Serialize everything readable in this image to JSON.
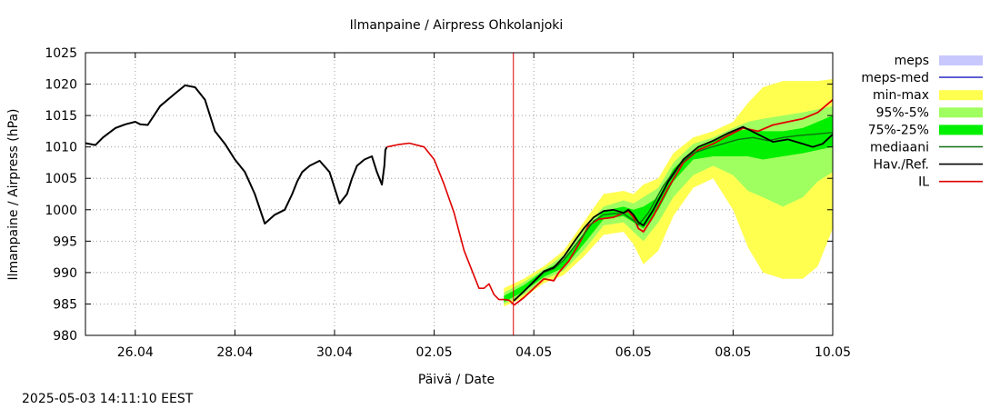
{
  "timestamp": "2025-05-03 14:11:10 EEST",
  "colors": {
    "meps": "#c8c8ff",
    "meps_med": "#3c3cc8",
    "min_max": "#ffff50",
    "p95_5": "#a0ff60",
    "p75_25": "#00f000",
    "median": "#107010",
    "observed": "#000000",
    "il": "#e00000",
    "now_line": "#e00000"
  },
  "chart_data": {
    "type": "line",
    "title": "Ilmanpaine / Airpress Ohkolanjoki",
    "xlabel": "Päivä / Date",
    "ylabel": "Ilmanpaine / Airpress (hPa)",
    "x_unit": "days from 2025-04-25 00:00",
    "xlim": [
      0,
      15
    ],
    "ylim": [
      980,
      1025
    ],
    "grid": true,
    "legend_position": "right",
    "x_ticks": [
      {
        "x": 1,
        "label": "26.04"
      },
      {
        "x": 3,
        "label": "28.04"
      },
      {
        "x": 5,
        "label": "30.04"
      },
      {
        "x": 7,
        "label": "02.05"
      },
      {
        "x": 9,
        "label": "04.05"
      },
      {
        "x": 11,
        "label": "06.05"
      },
      {
        "x": 13,
        "label": "08.05"
      },
      {
        "x": 15,
        "label": "10.05"
      }
    ],
    "y_ticks": [
      {
        "y": 980,
        "label": "980"
      },
      {
        "y": 985,
        "label": "985"
      },
      {
        "y": 990,
        "label": "990"
      },
      {
        "y": 995,
        "label": "995"
      },
      {
        "y": 1000,
        "label": "1000"
      },
      {
        "y": 1005,
        "label": "1005"
      },
      {
        "y": 1010,
        "label": "1010"
      },
      {
        "y": 1015,
        "label": "1015"
      },
      {
        "y": 1020,
        "label": "1020"
      },
      {
        "y": 1025,
        "label": "1025"
      }
    ],
    "now_x": 8.59,
    "legend": [
      {
        "key": "meps",
        "label": "meps",
        "kind": "box"
      },
      {
        "key": "meps_med",
        "label": "meps-med",
        "kind": "line"
      },
      {
        "key": "min_max",
        "label": "min-max",
        "kind": "box"
      },
      {
        "key": "p95_5",
        "label": "95%-5%",
        "kind": "box"
      },
      {
        "key": "p75_25",
        "label": "75%-25%",
        "kind": "box"
      },
      {
        "key": "median",
        "label": "mediaani",
        "kind": "line"
      },
      {
        "key": "observed",
        "label": "Hav./Ref.",
        "kind": "line"
      },
      {
        "key": "il",
        "label": "IL",
        "kind": "line"
      }
    ],
    "bands": {
      "min_max": {
        "x": [
          8.4,
          8.8,
          9.2,
          9.6,
          10.0,
          10.4,
          10.8,
          11.0,
          11.2,
          11.5,
          11.8,
          12.2,
          12.6,
          13.0,
          13.3,
          13.6,
          14.0,
          14.4,
          14.7,
          15.0
        ],
        "lower": [
          984.6,
          986.0,
          988.3,
          989.6,
          992.5,
          996.0,
          996.5,
          994.5,
          991.3,
          993.5,
          999.0,
          1003.5,
          1005.0,
          1000.0,
          994.0,
          990.0,
          989.0,
          989.0,
          991.0,
          997.0
        ],
        "upper": [
          987.5,
          989.0,
          991.0,
          993.5,
          998.0,
          1002.5,
          1003.0,
          1002.5,
          1004.0,
          1005.0,
          1009.0,
          1011.5,
          1012.5,
          1014.0,
          1017.0,
          1019.5,
          1020.5,
          1020.5,
          1020.5,
          1020.8
        ]
      },
      "p95_5": {
        "x": [
          8.4,
          8.8,
          9.2,
          9.6,
          10.0,
          10.4,
          10.8,
          11.0,
          11.2,
          11.5,
          11.8,
          12.2,
          12.6,
          13.0,
          13.3,
          13.6,
          14.0,
          14.4,
          14.7,
          15.0
        ],
        "lower": [
          985.0,
          986.5,
          988.8,
          990.3,
          993.5,
          997.5,
          998.0,
          996.5,
          995.0,
          998.0,
          1002.0,
          1005.5,
          1007.0,
          1005.5,
          1003.0,
          1002.0,
          1000.5,
          1002.0,
          1004.5,
          1006.0
        ],
        "upper": [
          986.8,
          988.5,
          990.5,
          992.8,
          997.0,
          1000.5,
          1001.5,
          1001.0,
          1002.0,
          1003.5,
          1007.5,
          1010.5,
          1011.5,
          1013.0,
          1014.0,
          1014.5,
          1015.0,
          1015.5,
          1016.0,
          1016.5
        ]
      },
      "p75_25": {
        "x": [
          8.4,
          8.8,
          9.2,
          9.6,
          10.0,
          10.4,
          10.8,
          11.0,
          11.2,
          11.5,
          11.8,
          12.2,
          12.6,
          13.0,
          13.3,
          13.6,
          14.0,
          14.4,
          14.7,
          15.0
        ],
        "lower": [
          985.3,
          987.0,
          989.3,
          990.8,
          994.5,
          998.5,
          999.0,
          998.0,
          997.0,
          1000.0,
          1004.5,
          1008.0,
          1008.5,
          1008.5,
          1008.5,
          1008.0,
          1008.5,
          1009.0,
          1009.5,
          1010.0
        ],
        "upper": [
          986.3,
          988.0,
          990.3,
          992.0,
          996.3,
          999.8,
          1000.5,
          1000.0,
          1000.5,
          1002.0,
          1006.5,
          1009.5,
          1011.0,
          1012.5,
          1012.8,
          1012.5,
          1012.5,
          1013.0,
          1014.0,
          1015.0
        ]
      }
    },
    "series": [
      {
        "key": "observed",
        "name": "Hav./Ref.",
        "x": [
          0.0,
          0.2,
          0.35,
          0.6,
          0.8,
          1.0,
          1.1,
          1.25,
          1.5,
          1.8,
          2.0,
          2.2,
          2.4,
          2.6,
          2.8,
          3.0,
          3.2,
          3.4,
          3.6,
          3.8,
          4.0,
          4.15,
          4.25,
          4.35,
          4.5,
          4.7,
          4.9,
          5.1,
          5.25,
          5.35,
          5.45,
          5.6,
          5.75,
          5.85,
          5.95,
          6.0,
          6.02,
          6.05
        ],
        "y": [
          1010.6,
          1010.3,
          1011.5,
          1013.0,
          1013.6,
          1014.0,
          1013.6,
          1013.5,
          1016.5,
          1018.5,
          1019.8,
          1019.5,
          1017.5,
          1012.5,
          1010.5,
          1008.0,
          1006.0,
          1002.5,
          997.8,
          999.2,
          1000.0,
          1002.5,
          1004.5,
          1006.0,
          1007.0,
          1007.8,
          1006.0,
          1001.0,
          1002.5,
          1005.0,
          1007.0,
          1008.0,
          1008.5,
          1006.0,
          1004.0,
          1007.0,
          1009.5,
          1010.0
        ]
      },
      {
        "key": "il_obs",
        "name": "IL",
        "x": [
          6.05,
          6.3,
          6.5,
          6.7,
          6.8,
          7.0,
          7.2,
          7.4,
          7.6,
          7.8,
          7.9,
          8.0,
          8.1,
          8.2,
          8.3,
          8.4,
          8.5,
          8.55,
          8.6
        ],
        "y": [
          1010.0,
          1010.4,
          1010.6,
          1010.2,
          1010.0,
          1008.0,
          1004.0,
          999.5,
          993.5,
          989.5,
          987.5,
          987.5,
          988.2,
          986.5,
          985.7,
          985.7,
          985.6,
          985.3,
          984.8
        ]
      },
      {
        "key": "il",
        "name": "IL",
        "x": [
          8.6,
          8.8,
          9.0,
          9.2,
          9.4,
          9.5,
          9.7,
          9.9,
          10.1,
          10.3,
          10.6,
          10.9,
          11.0,
          11.1,
          11.2,
          11.4,
          11.7,
          12.0,
          12.3,
          12.6,
          12.9,
          13.2,
          13.5,
          13.8,
          14.1,
          14.4,
          14.7,
          15.0
        ],
        "y": [
          984.8,
          986.0,
          987.5,
          989.0,
          988.7,
          990.0,
          991.8,
          994.5,
          997.5,
          998.5,
          998.8,
          999.8,
          998.8,
          997.0,
          996.5,
          999.0,
          1003.5,
          1007.5,
          1009.5,
          1010.5,
          1011.8,
          1013.0,
          1012.5,
          1013.5,
          1014.0,
          1014.5,
          1015.5,
          1017.5
        ]
      },
      {
        "key": "median",
        "name": "mediaani",
        "x": [
          8.6,
          8.8,
          9.0,
          9.2,
          9.4,
          9.6,
          9.8,
          10.0,
          10.2,
          10.4,
          10.6,
          10.8,
          11.0,
          11.1,
          11.3,
          11.6,
          11.9,
          12.2,
          12.5,
          12.8,
          13.1,
          13.4,
          13.7,
          14.0,
          14.3,
          14.6,
          15.0
        ],
        "y": [
          985.6,
          987.0,
          988.5,
          990.0,
          990.6,
          992.0,
          994.0,
          996.0,
          998.2,
          999.2,
          999.4,
          999.4,
          998.3,
          997.6,
          999.5,
          1003.8,
          1007.0,
          1009.0,
          1009.8,
          1010.5,
          1011.2,
          1011.5,
          1011.0,
          1011.5,
          1011.8,
          1012.0,
          1012.3
        ]
      },
      {
        "key": "observed_fc",
        "name": "Hav./Ref.",
        "x": [
          8.6,
          8.8,
          9.0,
          9.2,
          9.4,
          9.6,
          9.8,
          10.0,
          10.2,
          10.4,
          10.6,
          10.8,
          10.9,
          11.0,
          11.1,
          11.2,
          11.4,
          11.7,
          12.0,
          12.3,
          12.6,
          12.9,
          13.2,
          13.5,
          13.8,
          14.1,
          14.4,
          14.6,
          14.8,
          15.0
        ],
        "y": [
          985.5,
          987.0,
          988.6,
          990.2,
          990.8,
          992.5,
          994.8,
          997.0,
          998.8,
          999.8,
          1000.0,
          999.5,
          1000.0,
          999.2,
          998.0,
          997.5,
          1000.0,
          1004.5,
          1008.0,
          1010.0,
          1011.0,
          1012.2,
          1013.2,
          1012.0,
          1010.8,
          1011.2,
          1010.5,
          1010.0,
          1010.5,
          1012.0
        ]
      }
    ]
  }
}
